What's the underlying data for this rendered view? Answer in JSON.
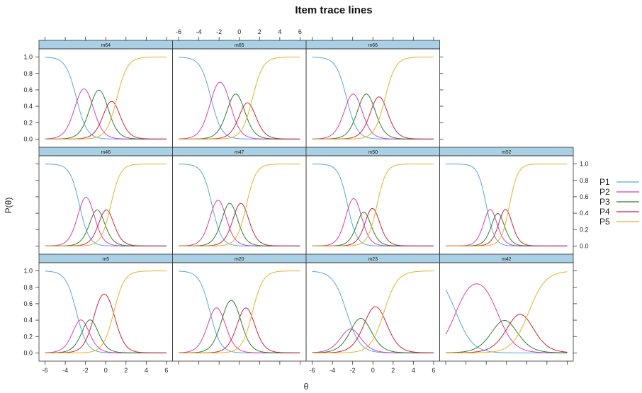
{
  "chart_data": {
    "type": "line",
    "title": "Item trace lines",
    "xlabel": "θ",
    "ylabel": "P(θ)",
    "xlim": [
      -6.6,
      6.6
    ],
    "ylim": [
      -0.1,
      1.1
    ],
    "x_ticks": [
      "-6",
      "-4",
      "-2",
      "0",
      "2",
      "4",
      "6"
    ],
    "y_ticks": [
      "0.0",
      "0.2",
      "0.4",
      "0.6",
      "0.8",
      "1.0"
    ],
    "x_tick_values": [
      -6,
      -4,
      -2,
      0,
      2,
      4,
      6
    ],
    "y_tick_values": [
      0,
      0.2,
      0.4,
      0.6,
      0.8,
      1.0
    ],
    "grid": false,
    "legend_position": "right",
    "legend": [
      "P1",
      "P2",
      "P3",
      "P4",
      "P5"
    ],
    "series_colors": [
      "#5aa7d8",
      "#d63fb0",
      "#2e7d32",
      "#c62839",
      "#e8b02a"
    ],
    "strip_color": "#a9d0e4",
    "panels": [
      {
        "name": "m64",
        "row": 0,
        "col": 0,
        "a": 1.9,
        "b": [
          -2.9,
          -1.4,
          0.05,
          1.1
        ]
      },
      {
        "name": "m65",
        "row": 0,
        "col": 1,
        "a": 1.9,
        "b": [
          -2.8,
          -1.0,
          0.3,
          1.3
        ]
      },
      {
        "name": "m66",
        "row": 0,
        "col": 2,
        "a": 1.9,
        "b": [
          -2.6,
          -1.3,
          0.0,
          1.2
        ]
      },
      {
        "name": "m46",
        "row": 1,
        "col": 0,
        "a": 2.1,
        "b": [
          -2.6,
          -1.3,
          -0.4,
          0.5
        ]
      },
      {
        "name": "m47",
        "row": 1,
        "col": 1,
        "a": 2.1,
        "b": [
          -2.7,
          -1.5,
          -0.4,
          0.7
        ]
      },
      {
        "name": "m50",
        "row": 1,
        "col": 2,
        "a": 2.2,
        "b": [
          -2.5,
          -1.3,
          -0.5,
          0.4
        ]
      },
      {
        "name": "m52",
        "row": 1,
        "col": 3,
        "a": 2.4,
        "b": [
          -2.0,
          -1.2,
          -0.5,
          0.3
        ]
      },
      {
        "name": "m5",
        "row": 2,
        "col": 0,
        "a": 1.9,
        "b": [
          -2.9,
          -2.0,
          -1.1,
          0.8
        ]
      },
      {
        "name": "m20",
        "row": 2,
        "col": 1,
        "a": 1.9,
        "b": [
          -2.9,
          -1.6,
          0.0,
          1.3
        ]
      },
      {
        "name": "m23",
        "row": 2,
        "col": 2,
        "a": 1.5,
        "b": [
          -2.6,
          -1.8,
          -0.6,
          1.1
        ]
      },
      {
        "name": "m42",
        "row": 2,
        "col": 3,
        "a": 1.2,
        "b": [
          -5.0,
          -0.9,
          0.5,
          2.2
        ]
      }
    ]
  }
}
